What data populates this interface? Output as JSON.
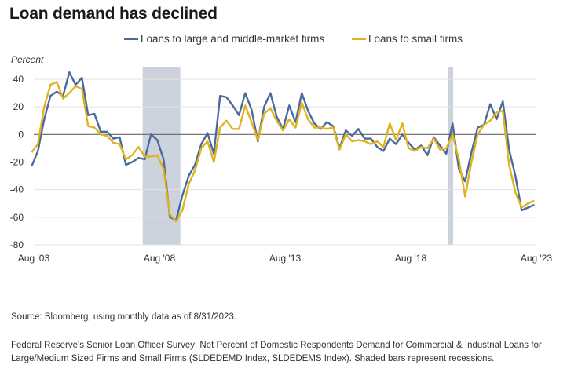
{
  "title": "Loan demand has declined",
  "source": "Source: Bloomberg, using monthly data as of 8/31/2023.",
  "note": "Federal Reserve's Senior Loan Officer Survey: Net Percent of Domestic Respondents Demand for Commercial & Industrial Loans for Large/Medium Sized Firms and Small Firms (SLDEDEMD Index, SLDEDEMS Index). Shaded bars represent recessions.",
  "colors": {
    "large": "#4a6a9c",
    "small": "#e0b21c",
    "recession": "#cdd3dc",
    "grid": "#e3e3e3",
    "zero": "#666666"
  },
  "chart_data": {
    "type": "line",
    "title": "Loan demand has declined",
    "ylabel": "Percent",
    "xlabel": "",
    "ylim": [
      -80,
      40
    ],
    "yticks": [
      40,
      20,
      0,
      -20,
      -40,
      -60,
      -80
    ],
    "xlim": [
      "2003-08",
      "2023-08"
    ],
    "xticks": [
      {
        "label": "Aug '03",
        "t": "2003-08"
      },
      {
        "label": "Aug '08",
        "t": "2008-08"
      },
      {
        "label": "Aug '13",
        "t": "2013-08"
      },
      {
        "label": "Aug '18",
        "t": "2018-08"
      },
      {
        "label": "Aug '23",
        "t": "2023-08"
      }
    ],
    "legend_position": "top-center",
    "grid": "horizontal",
    "recessions": [
      {
        "start": "2007-12",
        "end": "2009-06"
      },
      {
        "start": "2020-02",
        "end": "2020-04"
      }
    ],
    "series": [
      {
        "name": "Loans to large and middle-market firms",
        "color": "#4a6a9c",
        "points": [
          [
            "2003-07",
            -23
          ],
          [
            "2003-10",
            -12
          ],
          [
            "2004-01",
            11
          ],
          [
            "2004-04",
            28
          ],
          [
            "2004-07",
            31
          ],
          [
            "2004-10",
            28
          ],
          [
            "2005-01",
            45
          ],
          [
            "2005-04",
            36
          ],
          [
            "2005-07",
            41
          ],
          [
            "2005-10",
            14
          ],
          [
            "2006-01",
            15
          ],
          [
            "2006-04",
            2
          ],
          [
            "2006-07",
            2
          ],
          [
            "2006-10",
            -3
          ],
          [
            "2007-01",
            -2
          ],
          [
            "2007-04",
            -22
          ],
          [
            "2007-07",
            -20
          ],
          [
            "2007-10",
            -17
          ],
          [
            "2008-01",
            -18
          ],
          [
            "2008-04",
            0
          ],
          [
            "2008-07",
            -4
          ],
          [
            "2008-10",
            -18
          ],
          [
            "2009-01",
            -60
          ],
          [
            "2009-04",
            -62
          ],
          [
            "2009-07",
            -44
          ],
          [
            "2009-10",
            -30
          ],
          [
            "2010-01",
            -22
          ],
          [
            "2010-04",
            -7
          ],
          [
            "2010-07",
            1
          ],
          [
            "2010-10",
            -14
          ],
          [
            "2011-01",
            28
          ],
          [
            "2011-04",
            27
          ],
          [
            "2011-07",
            21
          ],
          [
            "2011-10",
            14
          ],
          [
            "2012-01",
            30
          ],
          [
            "2012-04",
            18
          ],
          [
            "2012-07",
            -5
          ],
          [
            "2012-10",
            20
          ],
          [
            "2013-01",
            30
          ],
          [
            "2013-04",
            13
          ],
          [
            "2013-07",
            4
          ],
          [
            "2013-10",
            21
          ],
          [
            "2014-01",
            9
          ],
          [
            "2014-04",
            30
          ],
          [
            "2014-07",
            17
          ],
          [
            "2014-10",
            8
          ],
          [
            "2015-01",
            4
          ],
          [
            "2015-04",
            9
          ],
          [
            "2015-07",
            6
          ],
          [
            "2015-10",
            -10
          ],
          [
            "2016-01",
            3
          ],
          [
            "2016-04",
            -1
          ],
          [
            "2016-07",
            4
          ],
          [
            "2016-10",
            -3
          ],
          [
            "2017-01",
            -3
          ],
          [
            "2017-04",
            -9
          ],
          [
            "2017-07",
            -12
          ],
          [
            "2017-10",
            -3
          ],
          [
            "2018-01",
            -7
          ],
          [
            "2018-04",
            0
          ],
          [
            "2018-07",
            -6
          ],
          [
            "2018-10",
            -11
          ],
          [
            "2019-01",
            -8
          ],
          [
            "2019-04",
            -15
          ],
          [
            "2019-07",
            -2
          ],
          [
            "2019-10",
            -8
          ],
          [
            "2020-01",
            -14
          ],
          [
            "2020-04",
            8
          ],
          [
            "2020-07",
            -25
          ],
          [
            "2020-10",
            -34
          ],
          [
            "2021-01",
            -13
          ],
          [
            "2021-04",
            5
          ],
          [
            "2021-07",
            7
          ],
          [
            "2021-10",
            22
          ],
          [
            "2022-01",
            11
          ],
          [
            "2022-04",
            24
          ],
          [
            "2022-07",
            -11
          ],
          [
            "2022-10",
            -30
          ],
          [
            "2023-01",
            -55
          ],
          [
            "2023-04",
            -53
          ],
          [
            "2023-07",
            -51
          ]
        ]
      },
      {
        "name": "Loans to small firms",
        "color": "#e0b21c",
        "points": [
          [
            "2003-07",
            -13
          ],
          [
            "2003-10",
            -7
          ],
          [
            "2004-01",
            20
          ],
          [
            "2004-04",
            36
          ],
          [
            "2004-07",
            38
          ],
          [
            "2004-10",
            26
          ],
          [
            "2005-01",
            30
          ],
          [
            "2005-04",
            35
          ],
          [
            "2005-07",
            33
          ],
          [
            "2005-10",
            6
          ],
          [
            "2006-01",
            5
          ],
          [
            "2006-04",
            0
          ],
          [
            "2006-07",
            -1
          ],
          [
            "2006-10",
            -6
          ],
          [
            "2007-01",
            -7
          ],
          [
            "2007-04",
            -18
          ],
          [
            "2007-07",
            -15
          ],
          [
            "2007-10",
            -9
          ],
          [
            "2008-01",
            -16
          ],
          [
            "2008-04",
            -16
          ],
          [
            "2008-07",
            -15
          ],
          [
            "2008-10",
            -25
          ],
          [
            "2009-01",
            -58
          ],
          [
            "2009-04",
            -63
          ],
          [
            "2009-07",
            -55
          ],
          [
            "2009-10",
            -36
          ],
          [
            "2010-01",
            -26
          ],
          [
            "2010-04",
            -10
          ],
          [
            "2010-07",
            -5
          ],
          [
            "2010-10",
            -20
          ],
          [
            "2011-01",
            5
          ],
          [
            "2011-04",
            10
          ],
          [
            "2011-07",
            4
          ],
          [
            "2011-10",
            4
          ],
          [
            "2012-01",
            21
          ],
          [
            "2012-04",
            9
          ],
          [
            "2012-07",
            -4
          ],
          [
            "2012-10",
            15
          ],
          [
            "2013-01",
            19
          ],
          [
            "2013-04",
            10
          ],
          [
            "2013-07",
            3
          ],
          [
            "2013-10",
            11
          ],
          [
            "2014-01",
            5
          ],
          [
            "2014-04",
            23
          ],
          [
            "2014-07",
            11
          ],
          [
            "2014-10",
            5
          ],
          [
            "2015-01",
            5
          ],
          [
            "2015-04",
            4
          ],
          [
            "2015-07",
            5
          ],
          [
            "2015-10",
            -11
          ],
          [
            "2016-01",
            0
          ],
          [
            "2016-04",
            -5
          ],
          [
            "2016-07",
            -4
          ],
          [
            "2016-10",
            -5
          ],
          [
            "2017-01",
            -7
          ],
          [
            "2017-04",
            -5
          ],
          [
            "2017-07",
            -9
          ],
          [
            "2017-10",
            8
          ],
          [
            "2018-01",
            -4
          ],
          [
            "2018-04",
            8
          ],
          [
            "2018-07",
            -10
          ],
          [
            "2018-10",
            -12
          ],
          [
            "2019-01",
            -9
          ],
          [
            "2019-04",
            -10
          ],
          [
            "2019-07",
            -3
          ],
          [
            "2019-10",
            -11
          ],
          [
            "2020-01",
            -10
          ],
          [
            "2020-04",
            0
          ],
          [
            "2020-07",
            -18
          ],
          [
            "2020-10",
            -45
          ],
          [
            "2021-01",
            -20
          ],
          [
            "2021-04",
            0
          ],
          [
            "2021-07",
            7
          ],
          [
            "2021-10",
            10
          ],
          [
            "2022-01",
            16
          ],
          [
            "2022-04",
            17
          ],
          [
            "2022-07",
            -22
          ],
          [
            "2022-10",
            -42
          ],
          [
            "2023-01",
            -53
          ],
          [
            "2023-04",
            -50
          ],
          [
            "2023-07",
            -48
          ]
        ]
      }
    ]
  }
}
